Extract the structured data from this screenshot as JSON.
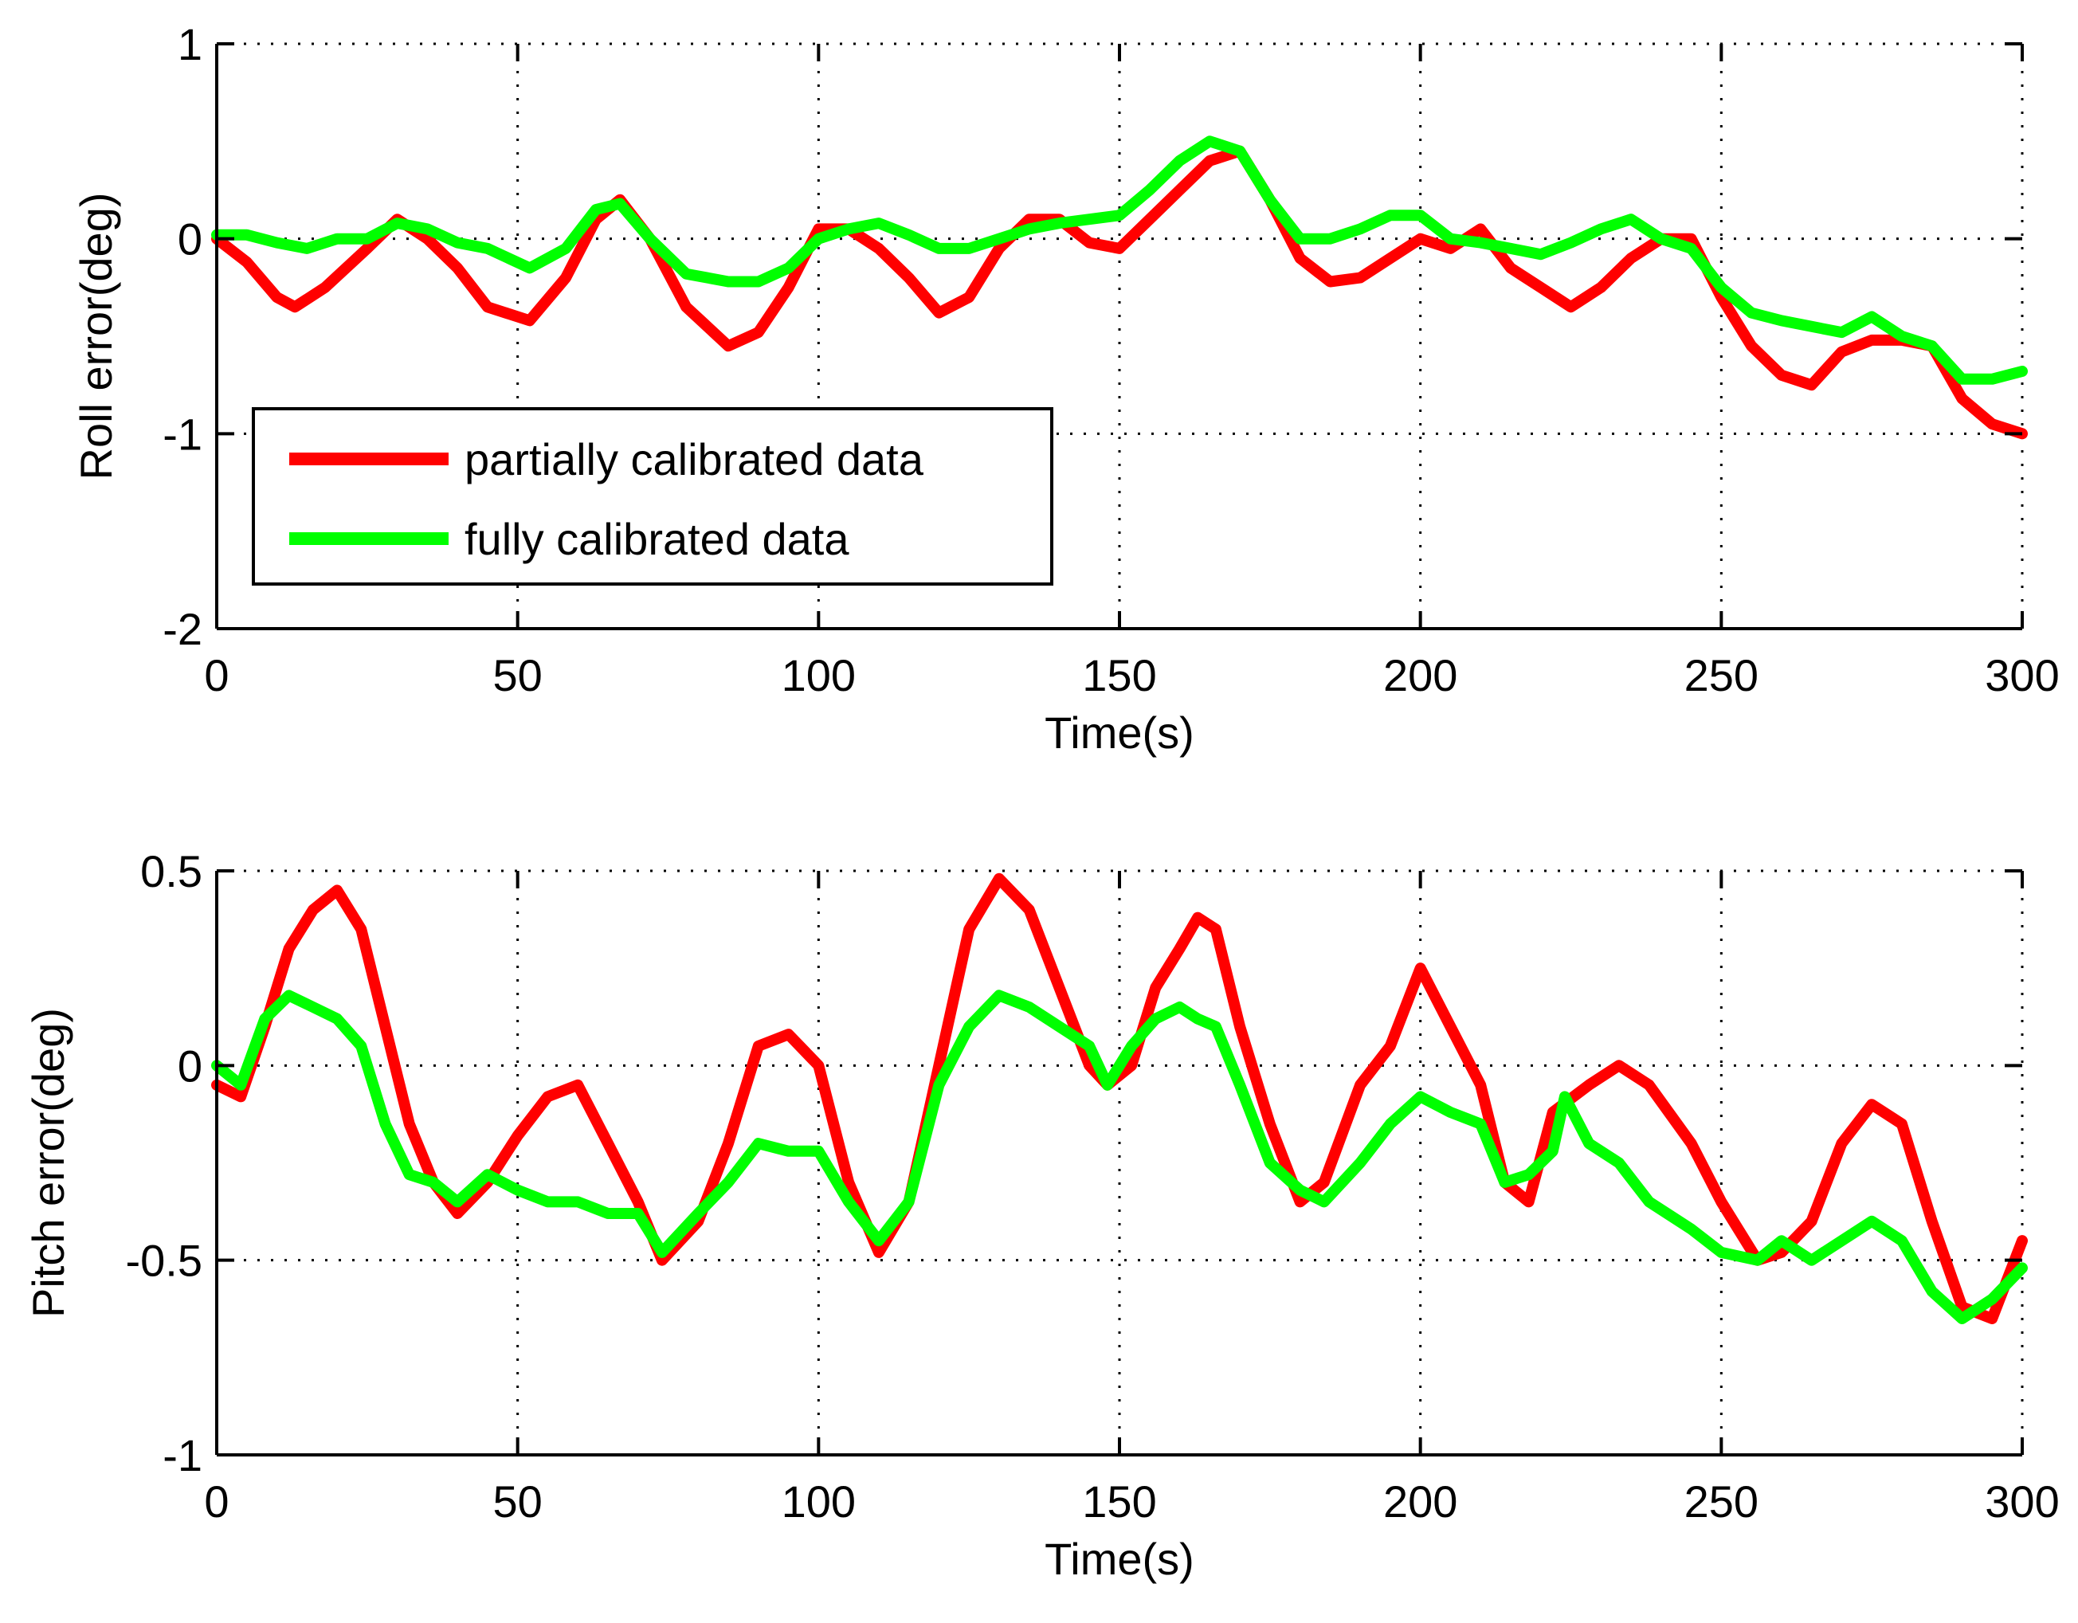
{
  "chart_data": [
    {
      "type": "line",
      "ylabel": "Roll error(deg)",
      "xlabel": "Time(s)",
      "xlim": [
        0,
        300
      ],
      "ylim": [
        -2,
        1
      ],
      "xticks": [
        0,
        50,
        100,
        150,
        200,
        250,
        300
      ],
      "xtick_labels": [
        "0",
        "50",
        "100",
        "150",
        "200",
        "250",
        "300"
      ],
      "yticks": [
        -2,
        -1,
        0,
        1
      ],
      "ytick_labels": [
        "-2",
        "-1",
        "0",
        "1"
      ],
      "grid": true,
      "legend": {
        "position": "lower-left",
        "entries": [
          "partially calibrated data",
          "fully calibrated data"
        ]
      },
      "series": [
        {
          "name": "partially calibrated data",
          "color": "#ff0000",
          "x": [
            0,
            5,
            10,
            13,
            18,
            25,
            30,
            35,
            40,
            45,
            52,
            58,
            63,
            67,
            72,
            78,
            85,
            90,
            95,
            100,
            105,
            110,
            115,
            120,
            125,
            130,
            135,
            140,
            145,
            150,
            155,
            160,
            165,
            170,
            175,
            180,
            185,
            190,
            195,
            200,
            205,
            210,
            215,
            220,
            225,
            230,
            235,
            240,
            245,
            250,
            255,
            260,
            265,
            270,
            275,
            280,
            285,
            290,
            295,
            300
          ],
          "values": [
            0.0,
            -0.12,
            -0.3,
            -0.35,
            -0.25,
            -0.05,
            0.1,
            0.0,
            -0.15,
            -0.35,
            -0.42,
            -0.2,
            0.1,
            0.2,
            0.0,
            -0.35,
            -0.55,
            -0.48,
            -0.25,
            0.05,
            0.05,
            -0.05,
            -0.2,
            -0.38,
            -0.3,
            -0.05,
            0.1,
            0.1,
            -0.02,
            -0.05,
            0.1,
            0.25,
            0.4,
            0.45,
            0.2,
            -0.1,
            -0.22,
            -0.2,
            -0.1,
            0.0,
            -0.05,
            0.05,
            -0.15,
            -0.25,
            -0.35,
            -0.25,
            -0.1,
            0.0,
            0.0,
            -0.3,
            -0.55,
            -0.7,
            -0.75,
            -0.58,
            -0.52,
            -0.52,
            -0.55,
            -0.82,
            -0.95,
            -1.0
          ]
        },
        {
          "name": "fully calibrated data",
          "color": "#00ff00",
          "x": [
            0,
            5,
            10,
            15,
            20,
            25,
            30,
            35,
            40,
            45,
            52,
            58,
            63,
            67,
            72,
            78,
            85,
            90,
            95,
            100,
            105,
            110,
            115,
            120,
            125,
            130,
            135,
            140,
            145,
            150,
            155,
            160,
            165,
            170,
            175,
            180,
            185,
            190,
            195,
            200,
            205,
            210,
            215,
            220,
            225,
            230,
            235,
            240,
            245,
            250,
            255,
            260,
            265,
            270,
            275,
            280,
            285,
            290,
            295,
            300
          ],
          "values": [
            0.02,
            0.02,
            -0.02,
            -0.05,
            0.0,
            0.0,
            0.08,
            0.05,
            -0.02,
            -0.05,
            -0.15,
            -0.05,
            0.15,
            0.18,
            0.0,
            -0.18,
            -0.22,
            -0.22,
            -0.15,
            0.0,
            0.05,
            0.08,
            0.02,
            -0.05,
            -0.05,
            0.0,
            0.05,
            0.08,
            0.1,
            0.12,
            0.25,
            0.4,
            0.5,
            0.45,
            0.2,
            0.0,
            0.0,
            0.05,
            0.12,
            0.12,
            0.0,
            -0.02,
            -0.05,
            -0.08,
            -0.02,
            0.05,
            0.1,
            0.0,
            -0.05,
            -0.25,
            -0.38,
            -0.42,
            -0.45,
            -0.48,
            -0.4,
            -0.5,
            -0.55,
            -0.72,
            -0.72,
            -0.68
          ]
        }
      ]
    },
    {
      "type": "line",
      "ylabel": "Pitch error(deg)",
      "xlabel": "Time(s)",
      "xlim": [
        0,
        300
      ],
      "ylim": [
        -1,
        0.5
      ],
      "xticks": [
        0,
        50,
        100,
        150,
        200,
        250,
        300
      ],
      "xtick_labels": [
        "0",
        "50",
        "100",
        "150",
        "200",
        "250",
        "300"
      ],
      "yticks": [
        -1,
        -0.5,
        0,
        0.5
      ],
      "ytick_labels": [
        "-1",
        "-0.5",
        "0",
        "0.5"
      ],
      "grid": true,
      "series": [
        {
          "name": "partially calibrated data",
          "color": "#ff0000",
          "x": [
            0,
            4,
            8,
            12,
            16,
            20,
            24,
            28,
            32,
            36,
            40,
            45,
            50,
            55,
            60,
            65,
            70,
            74,
            80,
            85,
            90,
            95,
            100,
            105,
            110,
            115,
            120,
            125,
            130,
            135,
            140,
            145,
            148,
            152,
            156,
            160,
            163,
            166,
            170,
            175,
            180,
            184,
            190,
            195,
            200,
            205,
            210,
            214,
            218,
            222,
            228,
            233,
            238,
            245,
            250,
            256,
            260,
            265,
            270,
            275,
            280,
            285,
            290,
            295,
            300
          ],
          "values": [
            -0.05,
            -0.08,
            0.1,
            0.3,
            0.4,
            0.45,
            0.35,
            0.1,
            -0.15,
            -0.3,
            -0.38,
            -0.3,
            -0.18,
            -0.08,
            -0.05,
            -0.2,
            -0.35,
            -0.5,
            -0.4,
            -0.2,
            0.05,
            0.08,
            0.0,
            -0.3,
            -0.48,
            -0.35,
            0.0,
            0.35,
            0.48,
            0.4,
            0.2,
            0.0,
            -0.05,
            0.0,
            0.2,
            0.3,
            0.38,
            0.35,
            0.1,
            -0.15,
            -0.35,
            -0.3,
            -0.05,
            0.05,
            0.25,
            0.1,
            -0.05,
            -0.3,
            -0.35,
            -0.12,
            -0.05,
            0.0,
            -0.05,
            -0.2,
            -0.35,
            -0.5,
            -0.48,
            -0.4,
            -0.2,
            -0.1,
            -0.15,
            -0.4,
            -0.62,
            -0.65,
            -0.45
          ]
        },
        {
          "name": "fully calibrated data",
          "color": "#00ff00",
          "x": [
            0,
            4,
            8,
            12,
            16,
            20,
            24,
            28,
            32,
            36,
            40,
            45,
            50,
            55,
            60,
            65,
            70,
            74,
            80,
            85,
            90,
            95,
            100,
            105,
            110,
            115,
            120,
            125,
            130,
            135,
            140,
            145,
            148,
            152,
            156,
            160,
            163,
            166,
            170,
            175,
            180,
            184,
            190,
            195,
            200,
            205,
            210,
            214,
            218,
            222,
            224,
            228,
            233,
            238,
            245,
            250,
            256,
            260,
            265,
            270,
            275,
            280,
            285,
            290,
            295,
            300
          ],
          "values": [
            0.0,
            -0.05,
            0.12,
            0.18,
            0.15,
            0.12,
            0.05,
            -0.15,
            -0.28,
            -0.3,
            -0.35,
            -0.28,
            -0.32,
            -0.35,
            -0.35,
            -0.38,
            -0.38,
            -0.48,
            -0.38,
            -0.3,
            -0.2,
            -0.22,
            -0.22,
            -0.35,
            -0.45,
            -0.35,
            -0.05,
            0.1,
            0.18,
            0.15,
            0.1,
            0.05,
            -0.05,
            0.05,
            0.12,
            0.15,
            0.12,
            0.1,
            -0.05,
            -0.25,
            -0.32,
            -0.35,
            -0.25,
            -0.15,
            -0.08,
            -0.12,
            -0.15,
            -0.3,
            -0.28,
            -0.22,
            -0.08,
            -0.2,
            -0.25,
            -0.35,
            -0.42,
            -0.48,
            -0.5,
            -0.45,
            -0.5,
            -0.45,
            -0.4,
            -0.45,
            -0.58,
            -0.65,
            -0.6,
            -0.52
          ]
        }
      ]
    }
  ]
}
